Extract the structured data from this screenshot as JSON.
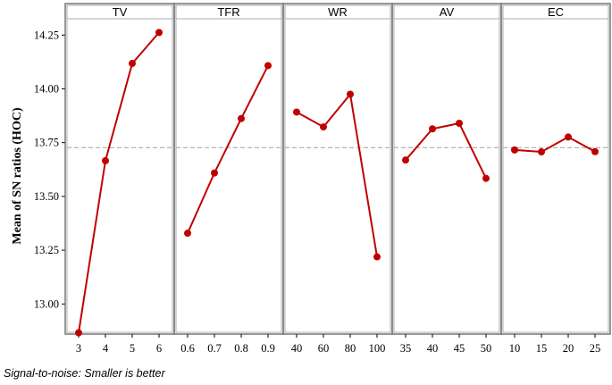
{
  "chart_data": {
    "type": "line",
    "ylabel": "Mean of SN ratios (HOC)",
    "ylim": [
      12.86,
      14.33
    ],
    "yticks": [
      "13.00",
      "13.25",
      "13.50",
      "13.75",
      "14.00",
      "14.25"
    ],
    "reference_line": 13.727,
    "line_color": "#c00000",
    "panels": [
      {
        "factor": "TV",
        "levels": [
          "3",
          "4",
          "5",
          "6"
        ],
        "values": [
          12.866,
          13.666,
          14.118,
          14.262
        ]
      },
      {
        "factor": "TFR",
        "levels": [
          "0.6",
          "0.7",
          "0.8",
          "0.9"
        ],
        "values": [
          13.329,
          13.609,
          13.862,
          14.108
        ]
      },
      {
        "factor": "WR",
        "levels": [
          "40",
          "60",
          "80",
          "100"
        ],
        "values": [
          13.892,
          13.823,
          13.975,
          13.219
        ]
      },
      {
        "factor": "AV",
        "levels": [
          "35",
          "40",
          "45",
          "50"
        ],
        "values": [
          13.669,
          13.814,
          13.84,
          13.584
        ]
      },
      {
        "factor": "EC",
        "levels": [
          "10",
          "15",
          "20",
          "25"
        ],
        "values": [
          13.716,
          13.707,
          13.776,
          13.708
        ]
      }
    ]
  },
  "footnote": "Signal-to-noise: Smaller is better"
}
